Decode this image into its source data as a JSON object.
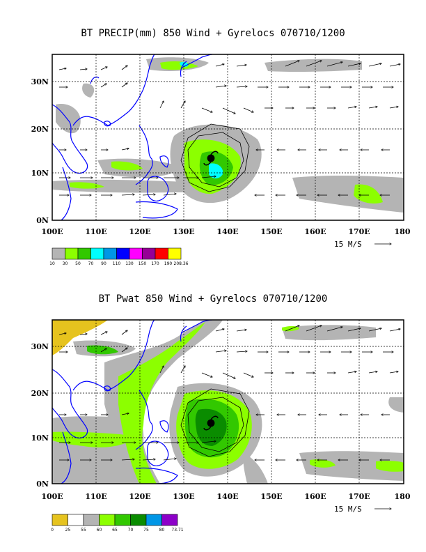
{
  "panels": [
    {
      "title": "BT PRECIP(mm) 850 Wind + Gyrelocs 070710/1200",
      "x_ticks": [
        "100E",
        "110E",
        "120E",
        "130E",
        "140E",
        "150E",
        "160E",
        "170E",
        "180"
      ],
      "y_ticks": [
        "0N",
        "10N",
        "20N",
        "30N"
      ],
      "reference_vector": "15 M/S",
      "legend": {
        "labels": [
          "10",
          "30",
          "50",
          "70",
          "90",
          "110",
          "130",
          "150",
          "170",
          "190",
          "208.36"
        ],
        "colors": [
          "#b4b4b4",
          "#8cff00",
          "#32c800",
          "#00ffff",
          "#0096e6",
          "#0000ff",
          "#ff00ff",
          "#960096",
          "#ff0000",
          "#ffff00"
        ]
      }
    },
    {
      "title": "BT Pwat 850 Wind + Gyrelocs 070710/1200",
      "x_ticks": [
        "100E",
        "110E",
        "120E",
        "130E",
        "140E",
        "150E",
        "160E",
        "170E",
        "180"
      ],
      "y_ticks": [
        "0N",
        "10N",
        "20N",
        "30N"
      ],
      "reference_vector": "15 M/S",
      "legend": {
        "labels": [
          "0",
          "25",
          "55",
          "60",
          "65",
          "70",
          "75",
          "80",
          "73.71"
        ],
        "colors": [
          "#e6c31e",
          "#ffffff",
          "#b4b4b4",
          "#8cff00",
          "#32c800",
          "#0a8c00",
          "#0096e6",
          "#8c00c8"
        ]
      }
    }
  ],
  "map_extent": {
    "lon_range": [
      100,
      180
    ],
    "lat_range": [
      0,
      35
    ]
  },
  "coast_color": "#0000ff"
}
